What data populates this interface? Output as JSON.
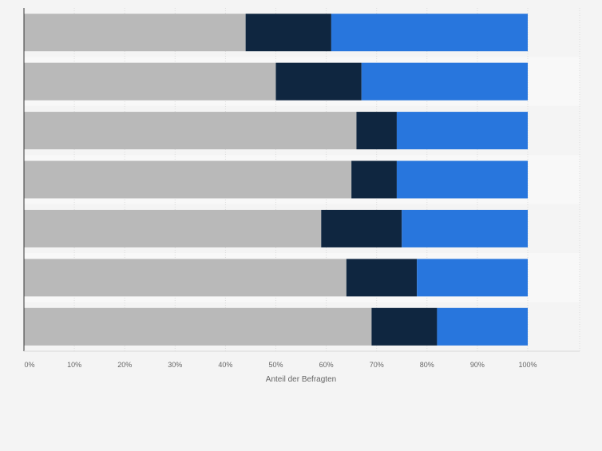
{
  "chart_data": {
    "type": "bar",
    "orientation": "horizontal",
    "stacked": true,
    "categories": [
      "",
      "",
      "",
      "",
      "",
      "",
      ""
    ],
    "series": [
      {
        "color": "#b9b9b9",
        "values": [
          44,
          50,
          66,
          65,
          59,
          64,
          69
        ]
      },
      {
        "color": "#0f2640",
        "values": [
          17,
          17,
          8,
          9,
          16,
          14,
          13
        ]
      },
      {
        "color": "#2876dd",
        "values": [
          39,
          33,
          26,
          26,
          25,
          22,
          18
        ]
      }
    ],
    "xlabel": "Anteil der Befragten",
    "ylabel": "",
    "xlim": [
      0,
      100
    ],
    "x_ticks": [
      "0%",
      "10%",
      "20%",
      "30%",
      "40%",
      "50%",
      "60%",
      "70%",
      "80%",
      "90%",
      "100%"
    ],
    "grid": true,
    "legend": "none"
  }
}
